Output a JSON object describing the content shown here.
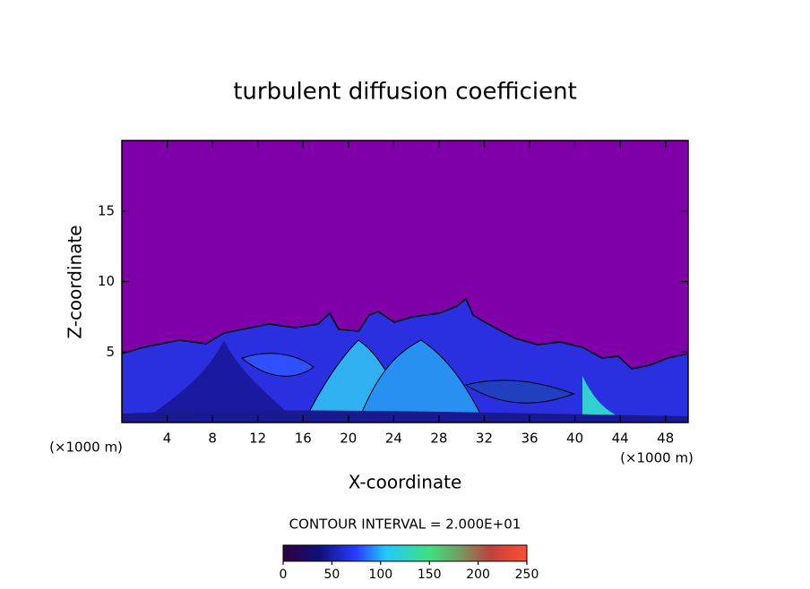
{
  "chart_data": {
    "type": "contour",
    "title": "turbulent diffusion coefficient",
    "x_label": "X-coordinate",
    "y_label": "Z-coordinate",
    "x_unit_label": "(×1000 m)",
    "x_unit_label_right": "(×1000 m)",
    "xlim": [
      0,
      50
    ],
    "xticks": [
      4,
      8,
      12,
      16,
      20,
      24,
      28,
      32,
      36,
      40,
      44,
      48
    ],
    "ylim": [
      0,
      20
    ],
    "yticks": [
      5,
      10,
      15
    ],
    "contour_interval_label": "CONTOUR INTERVAL = 2.000E+01",
    "colorbar": {
      "lim": [
        0,
        250
      ],
      "ticks": [
        0,
        50,
        100,
        150,
        200,
        250
      ]
    }
  }
}
